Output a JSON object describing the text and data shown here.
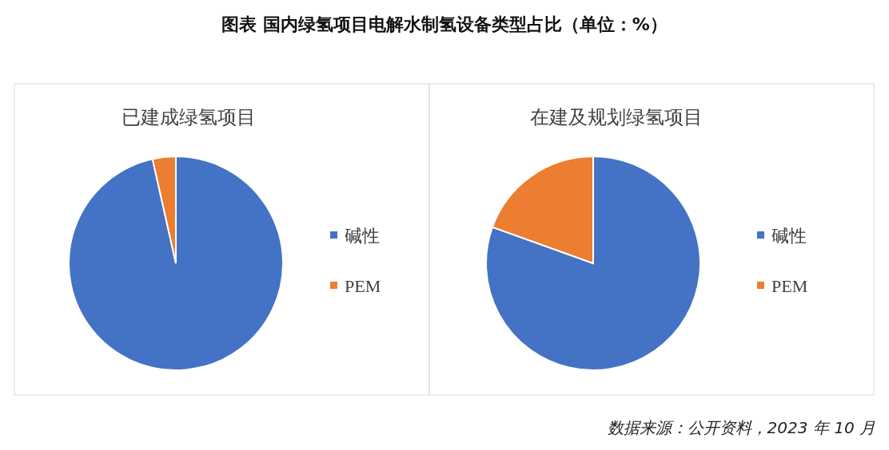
{
  "chart_data": [
    {
      "type": "pie",
      "title": "图表  国内绿氢项目电解水制氢设备类型占比（单位：%）",
      "subtitle": "已建成绿氢项目",
      "categories": [
        "碱性",
        "PEM"
      ],
      "values": [
        96.5,
        3.5
      ],
      "colors": [
        "#4472c4",
        "#ed7d31"
      ],
      "legend": "right"
    },
    {
      "type": "pie",
      "subtitle": "在建及规划绿氢项目",
      "categories": [
        "碱性",
        "PEM"
      ],
      "values": [
        80.5,
        19.5
      ],
      "colors": [
        "#4472c4",
        "#ed7d31"
      ],
      "legend": "right",
      "annotations": [
        "数据来源：公开资料，2023 年 10 月"
      ]
    }
  ]
}
